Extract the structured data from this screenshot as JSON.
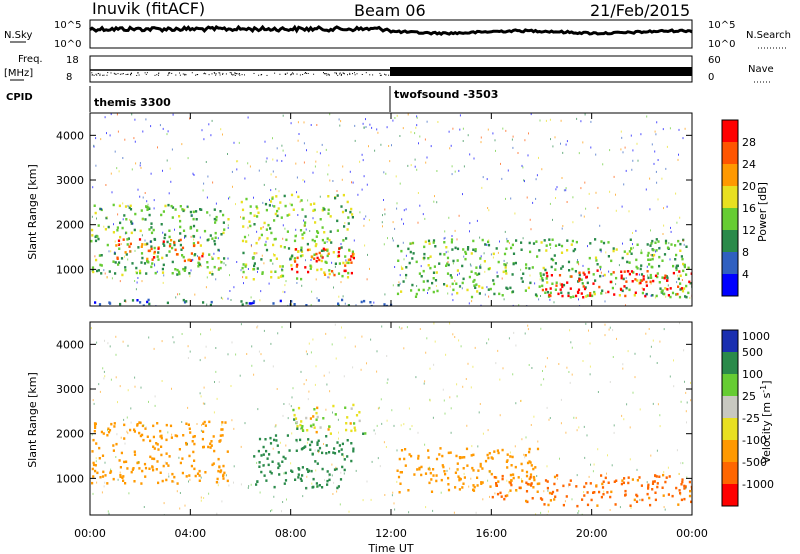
{
  "header": {
    "station": "Inuvik (fitACF)",
    "beam": "Beam 06",
    "date": "21/Feb/2015"
  },
  "top_panels": {
    "nsky_label": "N.Sky",
    "nsky_ticks": [
      "10^5",
      "10^0"
    ],
    "nsearch_label": "N.Search",
    "nsearch_ticks": [
      "10^5",
      "10^0"
    ],
    "freq_label": "Freq.",
    "freq_unit": "[MHz]",
    "freq_ticks": [
      "18",
      "8"
    ],
    "nave_label": "Nave",
    "nave_ticks": [
      "60",
      "0"
    ],
    "cpid_label": "CPID",
    "cpid_segments": [
      {
        "name": "themis 3300",
        "start_hour": 0,
        "end_hour": 12
      },
      {
        "name": "twofsound -3503",
        "start_hour": 12,
        "end_hour": 24
      }
    ]
  },
  "colors": {
    "power": [
      "#0000ff",
      "#3060c0",
      "#2a8a4a",
      "#66cc33",
      "#e8e020",
      "#ff9900",
      "#ff5500",
      "#ff0000"
    ],
    "velocity": [
      "#1a2fb0",
      "#2a8a4a",
      "#66cc33",
      "#c8c8c0",
      "#e8e020",
      "#ff9900",
      "#ff6600",
      "#ff0000"
    ]
  },
  "chart_data": [
    {
      "type": "heatmap",
      "panel": "power",
      "xlabel": "",
      "ylabel": "Slant Range [km]",
      "x_ticks": [
        "00:00",
        "04:00",
        "08:00",
        "12:00",
        "16:00",
        "20:00",
        "00:00"
      ],
      "xlim_hours": [
        0,
        24
      ],
      "y_ticks": [
        1000,
        2000,
        3000,
        4000
      ],
      "ylim": [
        180,
        4500
      ],
      "colorbar": {
        "label": "Power [dB]",
        "ticks": [
          4,
          8,
          12,
          16,
          20,
          24,
          28
        ],
        "range": [
          0,
          30
        ]
      },
      "echo_regions": [
        {
          "t0": 0.0,
          "t1": 5.5,
          "r0": 900,
          "r1": 2500,
          "level": 12
        },
        {
          "t0": 1.0,
          "t1": 4.5,
          "r0": 1200,
          "r1": 1700,
          "level": 24
        },
        {
          "t0": 6.0,
          "t1": 10.5,
          "r0": 800,
          "r1": 2700,
          "level": 14
        },
        {
          "t0": 8.0,
          "t1": 10.5,
          "r0": 900,
          "r1": 1500,
          "level": 26
        },
        {
          "t0": 12.2,
          "t1": 24.0,
          "r0": 400,
          "r1": 1700,
          "level": 12
        },
        {
          "t0": 18.0,
          "t1": 24.0,
          "r0": 400,
          "r1": 1000,
          "level": 28
        },
        {
          "t0": 0.0,
          "t1": 12.0,
          "r0": 200,
          "r1": 350,
          "level": 6
        }
      ]
    },
    {
      "type": "heatmap",
      "panel": "velocity",
      "xlabel": "Time UT",
      "ylabel": "Slant Range [km]",
      "x_ticks": [
        "00:00",
        "04:00",
        "08:00",
        "12:00",
        "16:00",
        "20:00",
        "00:00"
      ],
      "xlim_hours": [
        0,
        24
      ],
      "y_ticks": [
        1000,
        2000,
        3000,
        4000
      ],
      "ylim": [
        180,
        4500
      ],
      "colorbar": {
        "label": "Velocity [m s^-1]",
        "ticks": [
          1000,
          500,
          100,
          25,
          -25,
          -100,
          -500,
          -1000
        ]
      },
      "echo_regions": [
        {
          "t0": 0.0,
          "t1": 5.5,
          "r0": 900,
          "r1": 2300,
          "level": -300
        },
        {
          "t0": 6.5,
          "t1": 10.5,
          "r0": 800,
          "r1": 2000,
          "level": 300
        },
        {
          "t0": 8.0,
          "t1": 11.0,
          "r0": 2000,
          "r1": 2700,
          "level": 0
        },
        {
          "t0": 12.2,
          "t1": 18.0,
          "r0": 700,
          "r1": 1700,
          "level": -300
        },
        {
          "t0": 16.0,
          "t1": 24.0,
          "r0": 400,
          "r1": 1100,
          "level": -600
        }
      ]
    }
  ]
}
